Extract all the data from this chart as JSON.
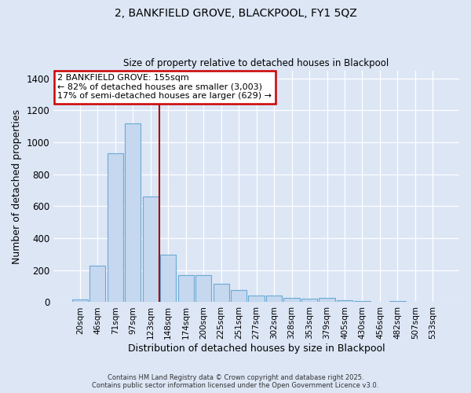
{
  "title1": "2, BANKFIELD GROVE, BLACKPOOL, FY1 5QZ",
  "title2": "Size of property relative to detached houses in Blackpool",
  "xlabel": "Distribution of detached houses by size in Blackpool",
  "ylabel": "Number of detached properties",
  "categories": [
    "20sqm",
    "46sqm",
    "71sqm",
    "97sqm",
    "123sqm",
    "148sqm",
    "174sqm",
    "200sqm",
    "225sqm",
    "251sqm",
    "277sqm",
    "302sqm",
    "328sqm",
    "353sqm",
    "379sqm",
    "405sqm",
    "430sqm",
    "456sqm",
    "482sqm",
    "507sqm",
    "533sqm"
  ],
  "values": [
    18,
    230,
    930,
    1120,
    660,
    295,
    170,
    170,
    115,
    75,
    43,
    42,
    27,
    20,
    25,
    12,
    5,
    0,
    8,
    0,
    0
  ],
  "bar_color": "#c5d8f0",
  "bar_edge_color": "#6aaad4",
  "vline_color": "#aa0000",
  "annotation_title": "2 BANKFIELD GROVE: 155sqm",
  "annotation_line1": "← 82% of detached houses are smaller (3,003)",
  "annotation_line2": "17% of semi-detached houses are larger (629) →",
  "annotation_box_color": "#cc0000",
  "footer1": "Contains HM Land Registry data © Crown copyright and database right 2025.",
  "footer2": "Contains public sector information licensed under the Open Government Licence v3.0.",
  "bg_color": "#dce6f5",
  "plot_bg_color": "#dce6f5",
  "ylim": [
    0,
    1450
  ],
  "yticks": [
    0,
    200,
    400,
    600,
    800,
    1000,
    1200,
    1400
  ]
}
